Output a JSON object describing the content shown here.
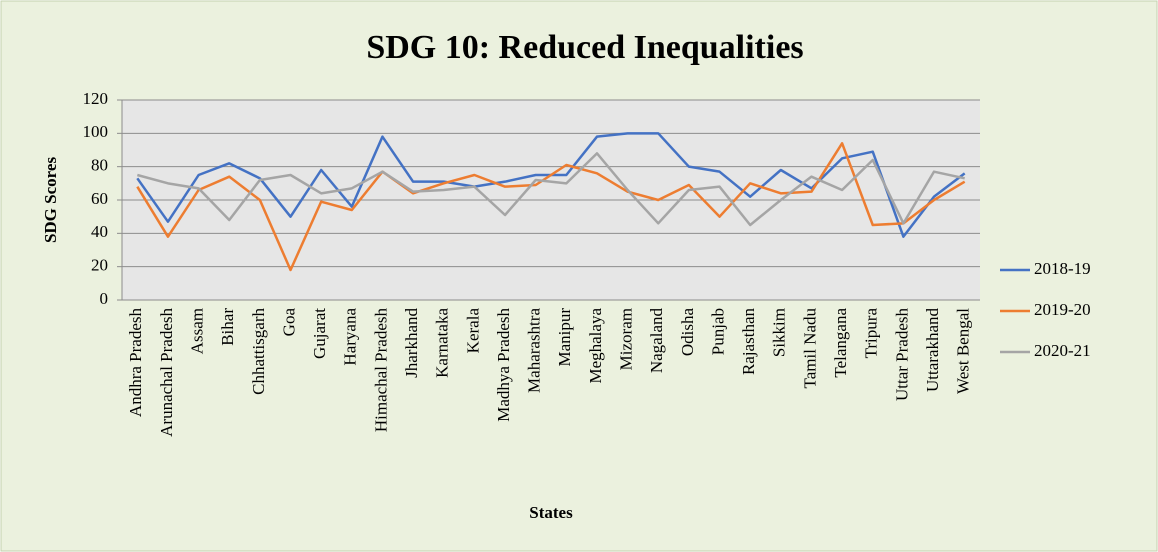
{
  "chart_data": {
    "type": "line",
    "title": "SDG 10: Reduced Inequalities",
    "xlabel": "States",
    "ylabel": "SDG Scores",
    "categories": [
      "Andhra Pradesh",
      "Arunachal Pradesh",
      "Assam",
      "Bihar",
      "Chhattisgarh",
      "Goa",
      "Gujarat",
      "Haryana",
      "Himachal Pradesh",
      "Jharkhand",
      "Karnataka",
      "Kerala",
      "Madhya Pradesh",
      "Maharashtra",
      "Manipur",
      "Meghalaya",
      "Mizoram",
      "Nagaland",
      "Odisha",
      "Punjab",
      "Rajasthan",
      "Sikkim",
      "Tamil Nadu",
      "Telangana",
      "Tripura",
      "Uttar Pradesh",
      "Uttarakhand",
      "West Bengal"
    ],
    "series": [
      {
        "name": "2018-19",
        "color": "#4472c4",
        "values": [
          73,
          47,
          75,
          82,
          73,
          50,
          78,
          56,
          98,
          71,
          71,
          68,
          71,
          75,
          75,
          98,
          100,
          100,
          80,
          77,
          62,
          78,
          67,
          85,
          89,
          38,
          62,
          76
        ]
      },
      {
        "name": "2019-20",
        "color": "#ed7d31",
        "values": [
          68,
          38,
          66,
          74,
          60,
          18,
          59,
          54,
          77,
          64,
          70,
          75,
          68,
          69,
          81,
          76,
          65,
          60,
          69,
          50,
          70,
          64,
          65,
          94,
          45,
          46,
          60,
          71
        ]
      },
      {
        "name": "2020-21",
        "color": "#a5a5a5",
        "values": [
          75,
          70,
          67,
          48,
          72,
          75,
          64,
          67,
          77,
          65,
          66,
          68,
          51,
          72,
          70,
          88,
          66,
          46,
          66,
          68,
          45,
          60,
          74,
          66,
          84,
          46,
          77,
          73
        ]
      }
    ],
    "ylim": [
      0,
      120
    ],
    "yticks": [
      0,
      20,
      40,
      60,
      80,
      100,
      120
    ],
    "grid": true,
    "legend": "right"
  }
}
